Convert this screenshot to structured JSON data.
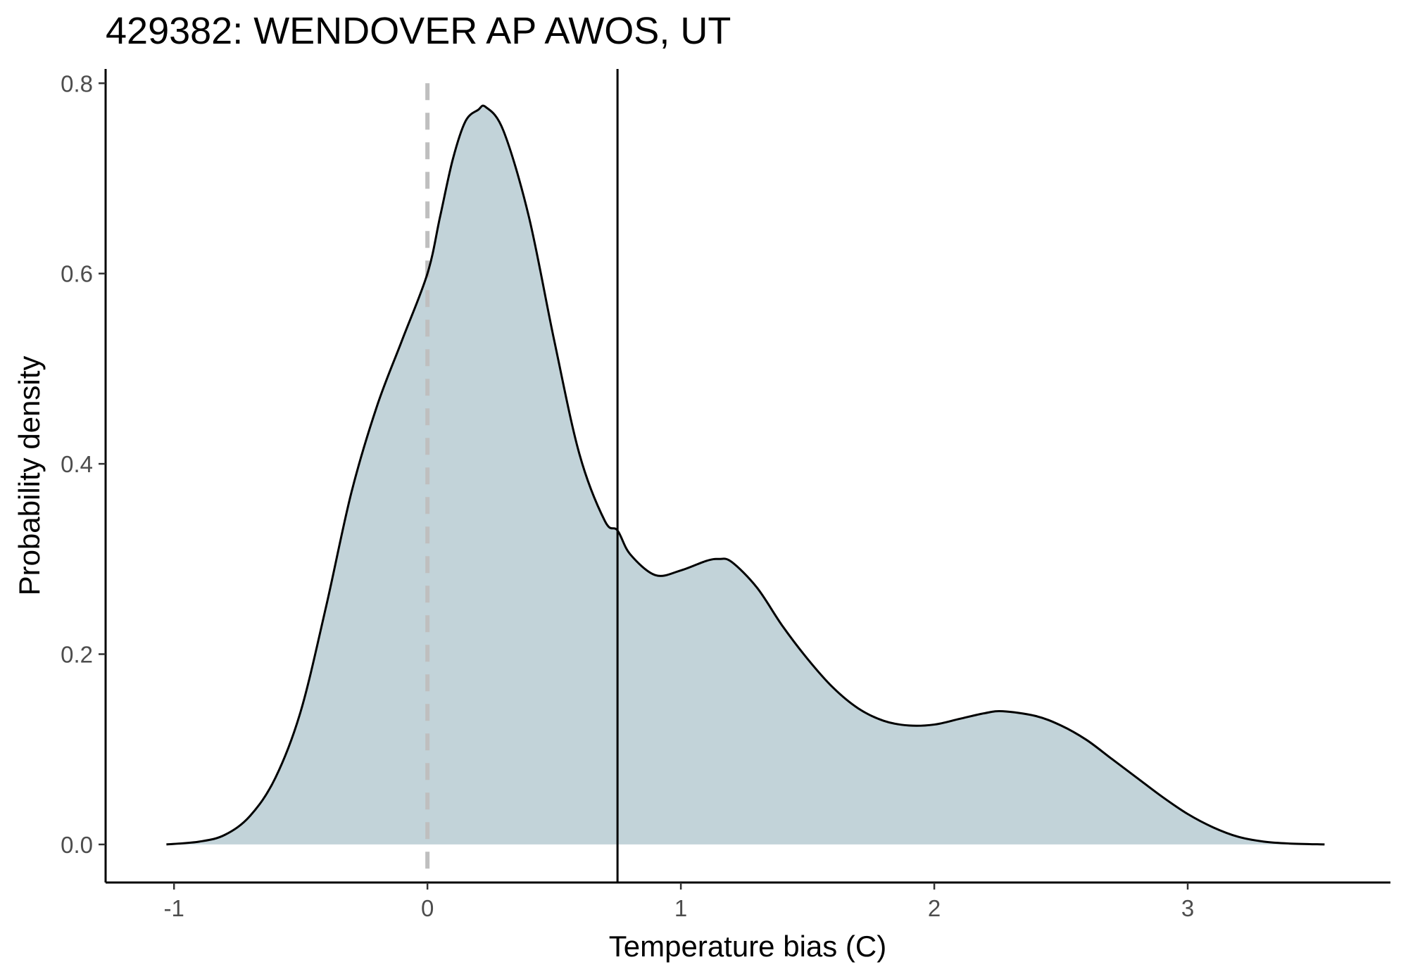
{
  "chart_data": {
    "type": "area",
    "title": "429382: WENDOVER AP AWOS, UT",
    "xlabel": "Temperature bias (C)",
    "ylabel": "Probability density",
    "xlim": [
      -1.27,
      3.8
    ],
    "ylim": [
      -0.04,
      0.815
    ],
    "x_ticks": [
      {
        "value": -1,
        "label": "-1"
      },
      {
        "value": 0,
        "label": "0"
      },
      {
        "value": 1,
        "label": "1"
      },
      {
        "value": 2,
        "label": "2"
      },
      {
        "value": 3,
        "label": "3"
      }
    ],
    "y_ticks": [
      {
        "value": 0.0,
        "label": "0.0"
      },
      {
        "value": 0.2,
        "label": "0.2"
      },
      {
        "value": 0.4,
        "label": "0.4"
      },
      {
        "value": 0.6,
        "label": "0.6"
      },
      {
        "value": 0.8,
        "label": "0.8"
      }
    ],
    "grid": false,
    "legend": "none",
    "series": [
      {
        "x": [
          -1.03,
          -0.9,
          -0.8,
          -0.7,
          -0.6,
          -0.5,
          -0.4,
          -0.3,
          -0.2,
          -0.1,
          0.0,
          0.05,
          0.1,
          0.15,
          0.2,
          0.23,
          0.3,
          0.4,
          0.5,
          0.6,
          0.7,
          0.75,
          0.8,
          0.9,
          1.0,
          1.1,
          1.15,
          1.2,
          1.3,
          1.4,
          1.5,
          1.6,
          1.7,
          1.8,
          1.9,
          2.0,
          2.1,
          2.2,
          2.27,
          2.4,
          2.5,
          2.6,
          2.7,
          2.8,
          2.9,
          3.0,
          3.1,
          3.2,
          3.3,
          3.4,
          3.54
        ],
        "y": [
          0.0,
          0.003,
          0.01,
          0.03,
          0.07,
          0.14,
          0.25,
          0.37,
          0.46,
          0.53,
          0.6,
          0.66,
          0.72,
          0.76,
          0.772,
          0.775,
          0.75,
          0.66,
          0.53,
          0.41,
          0.34,
          0.33,
          0.305,
          0.283,
          0.288,
          0.298,
          0.3,
          0.297,
          0.27,
          0.23,
          0.195,
          0.165,
          0.143,
          0.13,
          0.125,
          0.126,
          0.132,
          0.138,
          0.14,
          0.135,
          0.125,
          0.11,
          0.09,
          0.07,
          0.05,
          0.032,
          0.018,
          0.008,
          0.003,
          0.001,
          0.0
        ],
        "fill": "#c2d3d9",
        "line": "#000000"
      }
    ],
    "reference_lines": [
      {
        "x": 0,
        "style": "dashed",
        "color": "#bfbfbf"
      },
      {
        "x": 0.75,
        "style": "solid",
        "color": "#000000"
      }
    ]
  }
}
